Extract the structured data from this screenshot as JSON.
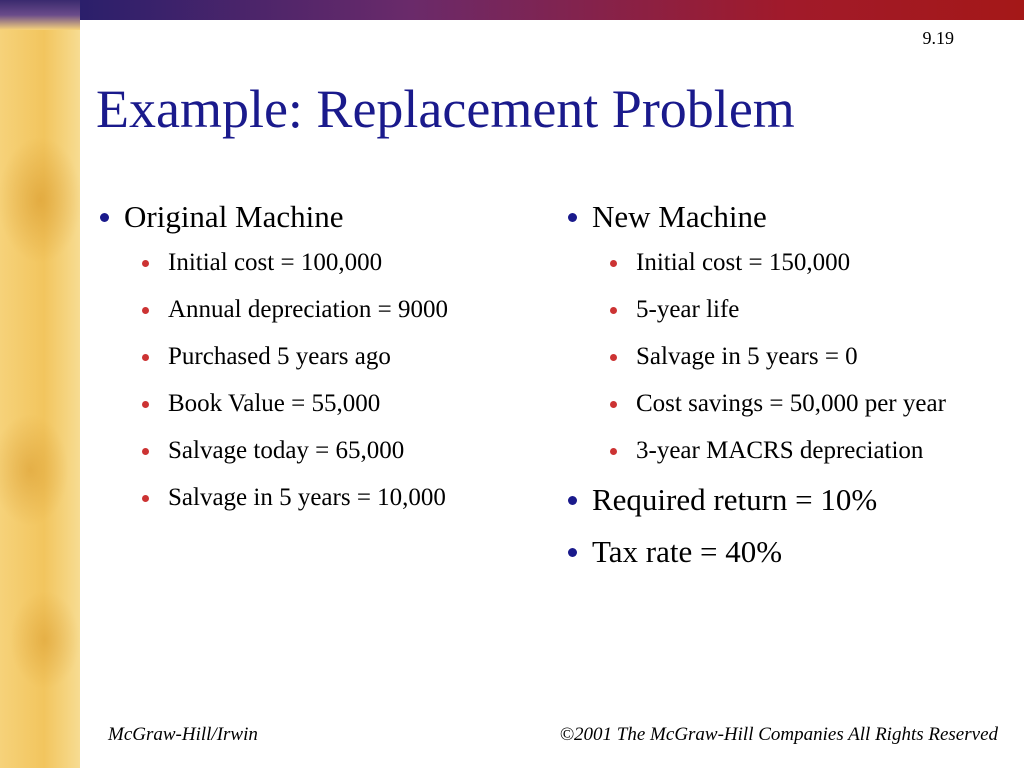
{
  "slide_number": "9.19",
  "title": "Example: Replacement Problem",
  "left_column": {
    "heading": "Original Machine",
    "items": [
      "Initial cost = 100,000",
      "Annual depreciation = 9000",
      "Purchased 5 years ago",
      "Book Value = 55,000",
      "Salvage today = 65,000",
      "Salvage in 5 years = 10,000"
    ]
  },
  "right_column": {
    "heading": "New Machine",
    "items": [
      "Initial cost = 150,000",
      "5-year life",
      "Salvage in 5 years = 0",
      "Cost savings = 50,000 per year",
      "3-year MACRS depreciation"
    ],
    "extra_points": [
      "Required return = 10%",
      "Tax rate = 40%"
    ]
  },
  "footer": {
    "left": "McGraw-Hill/Irwin",
    "right": "©2001 The McGraw-Hill Companies All Rights Reserved"
  },
  "colors": {
    "title": "#1a1a8c",
    "level1_bullet": "#1a1a8c",
    "level2_bullet": "#cc3333",
    "top_bar_start": "#2b1f6b",
    "top_bar_end": "#a41818"
  }
}
